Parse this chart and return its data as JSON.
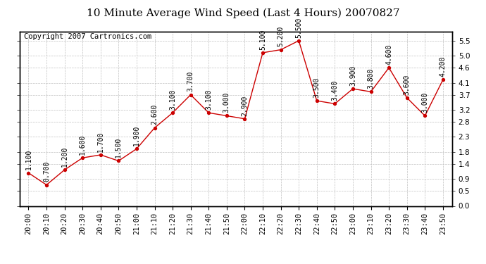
{
  "title": "10 Minute Average Wind Speed (Last 4 Hours) 20070827",
  "copyright": "Copyright 2007 Cartronics.com",
  "times": [
    "20:00",
    "20:10",
    "20:20",
    "20:30",
    "20:40",
    "20:50",
    "21:00",
    "21:10",
    "21:20",
    "21:30",
    "21:40",
    "21:50",
    "22:00",
    "22:10",
    "22:20",
    "22:30",
    "22:40",
    "22:50",
    "23:00",
    "23:10",
    "23:20",
    "23:30",
    "23:40",
    "23:50"
  ],
  "values": [
    1.1,
    0.7,
    1.2,
    1.6,
    1.7,
    1.5,
    1.9,
    2.6,
    3.1,
    3.7,
    3.1,
    3.0,
    2.9,
    5.1,
    5.2,
    5.5,
    3.5,
    3.4,
    3.9,
    3.8,
    4.6,
    3.6,
    3.0,
    4.2
  ],
  "labels": [
    "1.100",
    "0.700",
    "1.200",
    "1.600",
    "1.700",
    "1.500",
    "1.900",
    "2.600",
    "3.100",
    "3.700",
    "3.100",
    "3.000",
    "2.900",
    "5.100",
    "5.200",
    "5.500",
    "3.500",
    "3.400",
    "3.900",
    "3.800",
    "4.600",
    "3.600",
    "3.000",
    "4.200"
  ],
  "ylim": [
    0.0,
    5.8
  ],
  "yticks": [
    0.0,
    0.5,
    0.9,
    1.4,
    1.8,
    2.3,
    2.8,
    3.2,
    3.7,
    4.1,
    4.6,
    5.0,
    5.5
  ],
  "ytick_labels": [
    "0.0",
    "0.5",
    "0.9",
    "1.4",
    "1.8",
    "2.3",
    "2.8",
    "3.2",
    "3.7",
    "4.1",
    "4.6",
    "5.0",
    "5.5"
  ],
  "line_color": "#cc0000",
  "marker_color": "#cc0000",
  "bg_color": "#ffffff",
  "grid_color": "#c0c0c0",
  "title_fontsize": 11,
  "copyright_fontsize": 7.5,
  "label_fontsize": 7,
  "tick_fontsize": 7.5
}
